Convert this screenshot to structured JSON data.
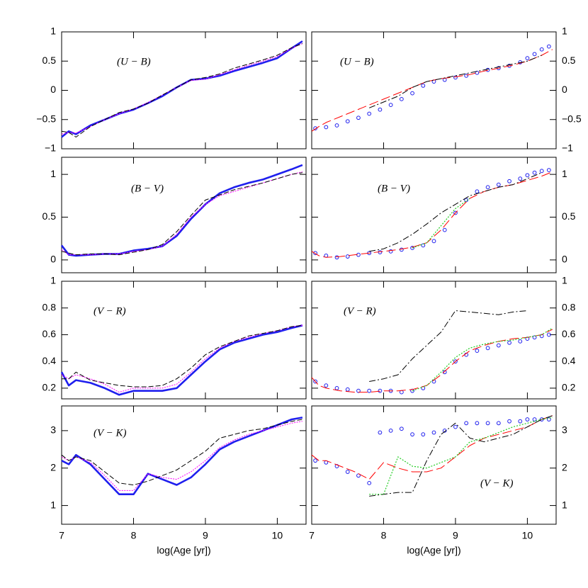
{
  "chart_data": [
    {
      "type": "line",
      "annotation": "(U − B)",
      "xlim": [
        7,
        10.4
      ],
      "xticks": [
        7,
        8,
        9,
        10
      ],
      "show_xtick_labels": false,
      "ylim": [
        -1,
        1
      ],
      "yticks": [
        {
          "value": -1,
          "label": "−1"
        },
        {
          "value": -0.5,
          "label": "−0.5"
        },
        0,
        0.5,
        1
      ],
      "ytick_side": "left",
      "x": [
        7,
        7.1,
        7.2,
        7.4,
        7.6,
        7.8,
        8,
        8.2,
        8.4,
        8.6,
        8.8,
        9,
        9.2,
        9.4,
        9.6,
        9.8,
        10,
        10.2,
        10.35
      ],
      "series": [
        {
          "color": "#1f1fee",
          "style": "solid-thick",
          "values": [
            -0.8,
            -0.7,
            -0.75,
            -0.6,
            -0.5,
            -0.4,
            -0.33,
            -0.22,
            -0.1,
            0.05,
            0.18,
            0.2,
            0.25,
            0.33,
            0.4,
            0.47,
            0.55,
            0.72,
            0.84
          ]
        },
        {
          "color": "#ff00ff",
          "style": "dotted",
          "values": [
            -0.75,
            -0.72,
            -0.73,
            -0.62,
            -0.5,
            -0.4,
            -0.32,
            -0.21,
            -0.08,
            0.05,
            0.17,
            0.19,
            0.27,
            0.35,
            0.43,
            0.5,
            0.58,
            0.72,
            0.8
          ]
        },
        {
          "color": "#000000",
          "style": "dashed",
          "values": [
            -0.7,
            -0.72,
            -0.8,
            -0.62,
            -0.5,
            -0.38,
            -0.32,
            -0.22,
            -0.08,
            0.05,
            0.18,
            0.22,
            0.28,
            0.38,
            0.45,
            0.52,
            0.6,
            0.73,
            0.8
          ]
        }
      ]
    },
    {
      "type": "line",
      "annotation": "(U − B)",
      "xlim": [
        7,
        10.4
      ],
      "xticks": [
        7,
        8,
        9,
        10
      ],
      "show_xtick_labels": false,
      "ylim": [
        -1,
        1
      ],
      "yticks": [
        {
          "value": -1,
          "label": "−1"
        },
        {
          "value": -0.5,
          "label": "−0.5"
        },
        0,
        0.5,
        1
      ],
      "ytick_side": "right",
      "x": [
        7,
        7.1,
        7.2,
        7.4,
        7.6,
        7.8,
        8,
        8.2,
        8.4,
        8.6,
        8.8,
        9,
        9.2,
        9.4,
        9.6,
        9.8,
        10,
        10.2,
        10.35
      ],
      "series": [
        {
          "color": "#1f1fee",
          "style": "circles",
          "x": [
            7.05,
            7.2,
            7.35,
            7.5,
            7.65,
            7.8,
            7.95,
            8.1,
            8.25,
            8.4,
            8.55,
            8.7,
            8.85,
            9.0,
            9.15,
            9.3,
            9.45,
            9.6,
            9.75,
            9.9,
            10.0,
            10.1,
            10.2,
            10.3
          ],
          "values": [
            -0.65,
            -0.63,
            -0.6,
            -0.53,
            -0.47,
            -0.4,
            -0.33,
            -0.25,
            -0.15,
            -0.05,
            0.08,
            0.15,
            0.18,
            0.22,
            0.25,
            0.3,
            0.35,
            0.38,
            0.42,
            0.48,
            0.55,
            0.62,
            0.7,
            0.75
          ]
        },
        {
          "color": "#ff0000",
          "style": "long-dash",
          "values": [
            -0.7,
            -0.62,
            -0.55,
            -0.45,
            -0.35,
            -0.25,
            -0.15,
            -0.05,
            0.05,
            0.15,
            0.2,
            0.23,
            0.27,
            0.33,
            0.38,
            0.43,
            0.5,
            0.6,
            0.7
          ]
        },
        {
          "color": "#000000",
          "style": "dash-dot",
          "values": [
            null,
            null,
            null,
            null,
            null,
            -0.3,
            -0.2,
            -0.1,
            0.05,
            0.15,
            0.2,
            0.25,
            0.3,
            0.35,
            0.4,
            0.45,
            0.5,
            0.6,
            null
          ]
        }
      ]
    },
    {
      "type": "line",
      "annotation": "(B − V)",
      "xlim": [
        7,
        10.4
      ],
      "xticks": [
        7,
        8,
        9,
        10
      ],
      "show_xtick_labels": false,
      "ylim": [
        -0.15,
        1.2
      ],
      "yticks": [
        0,
        0.5,
        1
      ],
      "ytick_side": "left",
      "x": [
        7,
        7.1,
        7.2,
        7.4,
        7.6,
        7.8,
        8,
        8.2,
        8.4,
        8.6,
        8.8,
        9,
        9.2,
        9.4,
        9.6,
        9.8,
        10,
        10.2,
        10.35
      ],
      "series": [
        {
          "color": "#1f1fee",
          "style": "solid-thick",
          "values": [
            0.17,
            0.06,
            0.05,
            0.06,
            0.07,
            0.07,
            0.11,
            0.13,
            0.16,
            0.28,
            0.48,
            0.65,
            0.78,
            0.85,
            0.9,
            0.94,
            1.0,
            1.06,
            1.11
          ]
        },
        {
          "color": "#ff00ff",
          "style": "dotted",
          "values": [
            0.12,
            0.06,
            0.06,
            0.06,
            0.07,
            0.07,
            0.1,
            0.12,
            0.16,
            0.3,
            0.5,
            0.65,
            0.75,
            0.8,
            0.85,
            0.9,
            0.95,
            1.0,
            1.03
          ]
        },
        {
          "color": "#000000",
          "style": "dashed",
          "values": [
            0.1,
            0.08,
            0.06,
            0.07,
            0.07,
            0.06,
            0.09,
            0.12,
            0.18,
            0.33,
            0.52,
            0.7,
            0.76,
            0.82,
            0.86,
            0.9,
            0.95,
            1.0,
            1.02
          ]
        }
      ]
    },
    {
      "type": "line",
      "annotation": "(B − V)",
      "xlim": [
        7,
        10.4
      ],
      "xticks": [
        7,
        8,
        9,
        10
      ],
      "show_xtick_labels": false,
      "ylim": [
        -0.15,
        1.2
      ],
      "yticks": [
        0,
        0.5,
        1
      ],
      "ytick_side": "right",
      "x": [
        7,
        7.1,
        7.2,
        7.4,
        7.6,
        7.8,
        8,
        8.2,
        8.4,
        8.6,
        8.8,
        9,
        9.2,
        9.4,
        9.6,
        9.8,
        10,
        10.2,
        10.35
      ],
      "series": [
        {
          "color": "#1f1fee",
          "style": "circles",
          "x": [
            7.05,
            7.2,
            7.35,
            7.5,
            7.65,
            7.8,
            7.95,
            8.1,
            8.25,
            8.4,
            8.55,
            8.7,
            8.85,
            9.0,
            9.15,
            9.3,
            9.45,
            9.6,
            9.75,
            9.9,
            10.0,
            10.1,
            10.2,
            10.3
          ],
          "values": [
            0.08,
            0.05,
            0.03,
            0.04,
            0.06,
            0.08,
            0.09,
            0.1,
            0.12,
            0.14,
            0.17,
            0.22,
            0.35,
            0.55,
            0.7,
            0.8,
            0.85,
            0.88,
            0.92,
            0.95,
            0.99,
            1.02,
            1.04,
            1.05
          ]
        },
        {
          "color": "#ff0000",
          "style": "long-dash",
          "values": [
            0.1,
            0.05,
            0.03,
            0.04,
            0.06,
            0.08,
            0.1,
            0.12,
            0.15,
            0.2,
            0.35,
            0.55,
            0.72,
            0.8,
            0.85,
            0.88,
            0.93,
            0.98,
            1.03
          ]
        },
        {
          "color": "#000000",
          "style": "dash-dot",
          "values": [
            null,
            null,
            null,
            null,
            null,
            0.1,
            0.13,
            0.2,
            0.3,
            0.42,
            0.55,
            0.65,
            0.75,
            0.8,
            0.85,
            0.88,
            0.95,
            1.02,
            null
          ]
        },
        {
          "color": "#22cc22",
          "style": "dotted",
          "values": [
            null,
            null,
            null,
            null,
            null,
            null,
            null,
            null,
            0.14,
            0.2,
            0.4,
            0.6,
            0.72,
            null,
            null,
            null,
            null,
            null,
            null
          ]
        }
      ]
    },
    {
      "type": "line",
      "annotation": "(V − R)",
      "xlim": [
        7,
        10.4
      ],
      "xticks": [
        7,
        8,
        9,
        10
      ],
      "show_xtick_labels": false,
      "ylim": [
        0.12,
        1
      ],
      "yticks": [
        0.2,
        0.4,
        0.6,
        0.8,
        1
      ],
      "ytick_side": "left",
      "x": [
        7,
        7.1,
        7.2,
        7.4,
        7.6,
        7.8,
        8,
        8.2,
        8.4,
        8.6,
        8.8,
        9,
        9.2,
        9.4,
        9.6,
        9.8,
        10,
        10.2,
        10.35
      ],
      "series": [
        {
          "color": "#1f1fee",
          "style": "solid-thick",
          "values": [
            0.32,
            0.22,
            0.26,
            0.24,
            0.2,
            0.15,
            0.18,
            0.18,
            0.18,
            0.2,
            0.3,
            0.4,
            0.49,
            0.54,
            0.57,
            0.6,
            0.62,
            0.65,
            0.67
          ]
        },
        {
          "color": "#ff00ff",
          "style": "dotted",
          "values": [
            0.3,
            0.27,
            0.3,
            0.27,
            0.23,
            0.17,
            0.2,
            0.2,
            0.2,
            0.23,
            0.32,
            0.42,
            0.5,
            0.55,
            0.58,
            0.61,
            0.63,
            0.66,
            0.67
          ]
        },
        {
          "color": "#000000",
          "style": "dashed",
          "values": [
            0.27,
            0.27,
            0.32,
            0.26,
            0.24,
            0.22,
            0.21,
            0.21,
            0.22,
            0.27,
            0.35,
            0.45,
            0.51,
            0.55,
            0.59,
            0.61,
            0.63,
            0.66,
            0.67
          ]
        }
      ]
    },
    {
      "type": "line",
      "annotation": "(V − R)",
      "xlim": [
        7,
        10.4
      ],
      "xticks": [
        7,
        8,
        9,
        10
      ],
      "show_xtick_labels": false,
      "ylim": [
        0.12,
        1
      ],
      "yticks": [
        0.2,
        0.4,
        0.6,
        0.8,
        1
      ],
      "ytick_side": "right",
      "x": [
        7,
        7.1,
        7.2,
        7.4,
        7.6,
        7.8,
        8,
        8.2,
        8.4,
        8.6,
        8.8,
        9,
        9.2,
        9.4,
        9.6,
        9.8,
        10,
        10.2,
        10.35
      ],
      "series": [
        {
          "color": "#1f1fee",
          "style": "circles",
          "x": [
            7.05,
            7.2,
            7.35,
            7.5,
            7.65,
            7.8,
            7.95,
            8.1,
            8.25,
            8.4,
            8.55,
            8.7,
            8.85,
            9.0,
            9.15,
            9.3,
            9.45,
            9.6,
            9.75,
            9.9,
            10.0,
            10.1,
            10.2,
            10.3
          ],
          "values": [
            0.25,
            0.22,
            0.2,
            0.19,
            0.18,
            0.18,
            0.18,
            0.18,
            0.17,
            0.18,
            0.2,
            0.25,
            0.32,
            0.4,
            0.45,
            0.48,
            0.5,
            0.52,
            0.54,
            0.55,
            0.57,
            0.58,
            0.59,
            0.6
          ]
        },
        {
          "color": "#ff0000",
          "style": "long-dash",
          "values": [
            0.28,
            0.22,
            0.2,
            0.18,
            0.17,
            0.17,
            0.18,
            0.18,
            0.19,
            0.22,
            0.3,
            0.4,
            0.48,
            0.52,
            0.55,
            0.57,
            0.58,
            0.6,
            0.64
          ]
        },
        {
          "color": "#000000",
          "style": "dash-dot",
          "values": [
            null,
            null,
            null,
            null,
            null,
            0.25,
            0.27,
            0.3,
            0.42,
            0.52,
            0.62,
            0.78,
            0.77,
            0.76,
            0.75,
            0.77,
            0.78,
            null,
            null
          ]
        },
        {
          "color": "#22cc22",
          "style": "dotted",
          "values": [
            null,
            null,
            null,
            null,
            null,
            null,
            null,
            null,
            0.18,
            0.22,
            0.32,
            0.43,
            0.5,
            0.53,
            0.55,
            0.56,
            0.58,
            0.6,
            0.65
          ]
        }
      ]
    },
    {
      "type": "line",
      "annotation": "(V − K)",
      "xlim": [
        7,
        10.4
      ],
      "xticks": [
        7,
        8,
        9,
        10
      ],
      "show_xtick_labels": true,
      "x_label": "log(Age [yr])",
      "ylim": [
        0.5,
        3.66
      ],
      "yticks": [
        1,
        2,
        3
      ],
      "ytick_side": "left",
      "x": [
        7,
        7.1,
        7.2,
        7.4,
        7.6,
        7.8,
        8,
        8.2,
        8.4,
        8.6,
        8.8,
        9,
        9.2,
        9.4,
        9.6,
        9.8,
        10,
        10.2,
        10.35
      ],
      "series": [
        {
          "color": "#1f1fee",
          "style": "solid-thick",
          "values": [
            2.2,
            2.1,
            2.35,
            2.1,
            1.7,
            1.3,
            1.3,
            1.85,
            1.7,
            1.55,
            1.75,
            2.1,
            2.5,
            2.7,
            2.85,
            3.0,
            3.15,
            3.3,
            3.35
          ]
        },
        {
          "color": "#ff00ff",
          "style": "dotted",
          "values": [
            2.3,
            2.2,
            2.3,
            2.15,
            1.8,
            1.4,
            1.4,
            1.85,
            1.75,
            1.7,
            1.9,
            2.2,
            2.55,
            2.75,
            2.9,
            3.0,
            3.1,
            3.2,
            3.25
          ]
        },
        {
          "color": "#000000",
          "style": "dashed",
          "values": [
            2.35,
            2.2,
            2.3,
            2.2,
            1.9,
            1.6,
            1.55,
            1.65,
            1.8,
            1.95,
            2.2,
            2.45,
            2.8,
            2.9,
            3.0,
            3.05,
            3.15,
            3.25,
            3.3
          ]
        }
      ]
    },
    {
      "type": "line",
      "annotation": "(V − K)",
      "xlim": [
        7,
        10.4
      ],
      "xticks": [
        7,
        8,
        9,
        10
      ],
      "show_xtick_labels": true,
      "x_label": "log(Age [yr])",
      "ylim": [
        0.5,
        3.66
      ],
      "yticks": [
        1,
        2,
        3
      ],
      "ytick_side": "right",
      "x": [
        7,
        7.1,
        7.2,
        7.4,
        7.6,
        7.8,
        8,
        8.2,
        8.4,
        8.6,
        8.8,
        9,
        9.2,
        9.4,
        9.6,
        9.8,
        10,
        10.2,
        10.35
      ],
      "series": [
        {
          "color": "#1f1fee",
          "style": "circles",
          "x": [
            7.05,
            7.2,
            7.35,
            7.5,
            7.65,
            7.8,
            7.95,
            8.1,
            8.25,
            8.4,
            8.55,
            8.7,
            8.85,
            9.0,
            9.15,
            9.3,
            9.45,
            9.6,
            9.75,
            9.9,
            10.0,
            10.1,
            10.2,
            10.3
          ],
          "values": [
            2.2,
            2.15,
            2.05,
            1.9,
            1.8,
            1.6,
            2.95,
            3.0,
            3.05,
            2.9,
            2.9,
            2.95,
            3.0,
            3.1,
            3.2,
            3.2,
            3.2,
            3.2,
            3.25,
            3.25,
            3.3,
            3.3,
            3.3,
            3.3
          ]
        },
        {
          "color": "#ff0000",
          "style": "long-dash",
          "values": [
            2.35,
            2.2,
            2.2,
            2.05,
            1.9,
            1.7,
            2.15,
            2.0,
            1.9,
            1.9,
            2.0,
            2.3,
            2.6,
            2.8,
            2.9,
            3.0,
            3.1,
            3.3,
            3.4
          ]
        },
        {
          "color": "#000000",
          "style": "dash-dot",
          "values": [
            null,
            null,
            null,
            null,
            null,
            1.25,
            1.3,
            1.35,
            1.35,
            2.2,
            2.9,
            3.2,
            2.8,
            2.7,
            2.8,
            2.9,
            3.1,
            3.3,
            3.4
          ]
        },
        {
          "color": "#22cc22",
          "style": "dotted",
          "values": [
            null,
            null,
            null,
            null,
            null,
            1.3,
            1.3,
            2.3,
            2.05,
            2.0,
            2.15,
            2.3,
            2.7,
            2.8,
            2.95,
            3.1,
            3.2,
            3.3,
            3.35
          ]
        }
      ]
    }
  ]
}
